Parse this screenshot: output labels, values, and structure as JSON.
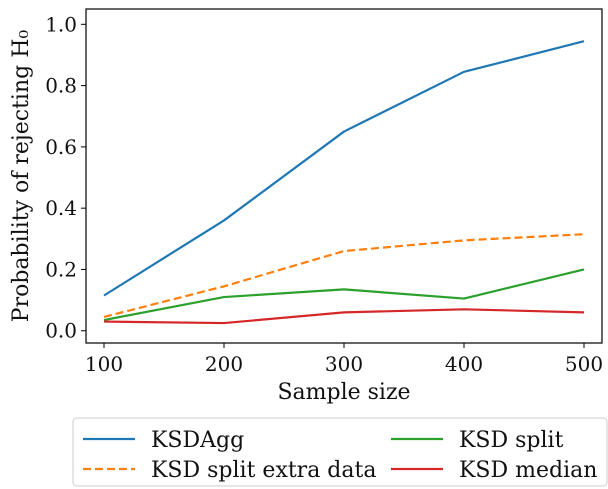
{
  "chart_data": {
    "type": "line",
    "xlabel": "Sample size",
    "ylabel": "Probability of rejecting H₀",
    "x": [
      100,
      200,
      300,
      400,
      500
    ],
    "xticks": [
      "100",
      "200",
      "300",
      "400",
      "500"
    ],
    "yticks": [
      "0.0",
      "0.2",
      "0.4",
      "0.6",
      "0.8",
      "1.0"
    ],
    "xlim": [
      85,
      515
    ],
    "ylim": [
      -0.04,
      1.05
    ],
    "grid": false,
    "legend_position": "bottom, outside plot",
    "series": [
      {
        "name": "KSDAgg",
        "color": "#1f77b4",
        "dash": "solid",
        "values": [
          0.115,
          0.36,
          0.65,
          0.845,
          0.945
        ]
      },
      {
        "name": "KSD split extra data",
        "color": "#ff7f0e",
        "dash": "dashed",
        "values": [
          0.045,
          0.145,
          0.26,
          0.295,
          0.315
        ]
      },
      {
        "name": "KSD split",
        "color": "#2ca02c",
        "dash": "solid",
        "values": [
          0.035,
          0.11,
          0.135,
          0.105,
          0.2
        ]
      },
      {
        "name": "KSD median",
        "color": "#d62728",
        "dash": "solid",
        "values": [
          0.03,
          0.025,
          0.06,
          0.07,
          0.06
        ]
      }
    ]
  }
}
